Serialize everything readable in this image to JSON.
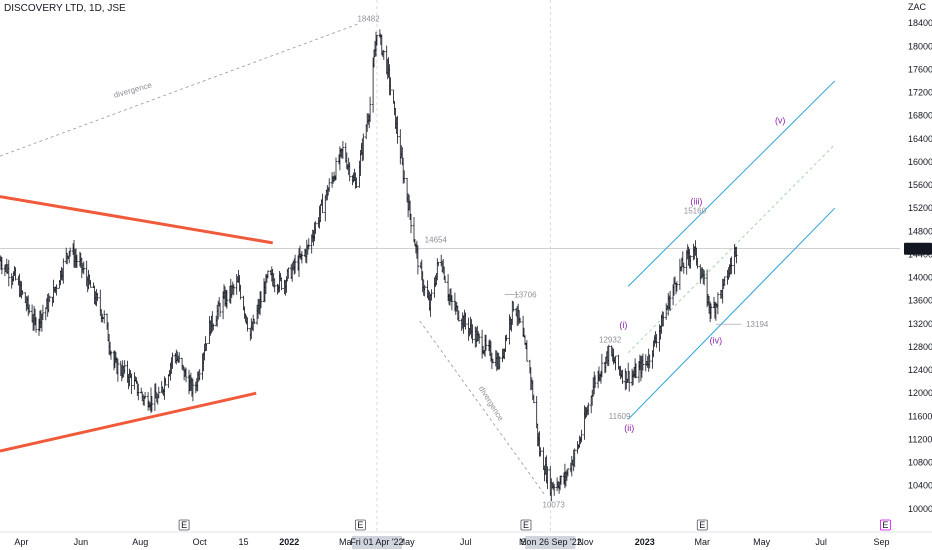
{
  "header": {
    "symbol": "DISCOVERY LTD, 1D, JSE"
  },
  "price_axis": {
    "currency": "ZAC"
  },
  "colors": {
    "bars": "#131722",
    "triangle": "#f05a3a",
    "channel": "#29a3d9",
    "wave_labels": "#8e24aa",
    "annotation": "#9598a1",
    "current_price_bg": "#131722"
  },
  "chart_data": {
    "type": "ohlc",
    "title": "DISCOVERY LTD, 1D, JSE",
    "ylim": [
      9600,
      18800
    ],
    "y_ticks": [
      10000,
      10400,
      10800,
      11200,
      11600,
      12000,
      12400,
      12800,
      13200,
      13600,
      14000,
      14400,
      14800,
      15200,
      15600,
      16000,
      16400,
      16800,
      17200,
      17600,
      18000,
      18400
    ],
    "y_tick_labels": [
      "10000",
      "10400",
      "10800",
      "11200",
      "11600",
      "12000",
      "12400",
      "12800",
      "13200",
      "13600",
      "14000",
      "14400",
      "14800",
      "15200",
      "15600",
      "16000",
      "16400",
      "16800",
      "17200",
      "17600",
      "18000",
      "18400"
    ],
    "x_range": [
      "2021-03-10",
      "2023-09-20"
    ],
    "x_ticks": [
      {
        "date": "2021-04-01",
        "label": "Apr"
      },
      {
        "date": "2021-06-01",
        "label": "Jun"
      },
      {
        "date": "2021-08-01",
        "label": "Aug"
      },
      {
        "date": "2021-10-01",
        "label": "Oct"
      },
      {
        "date": "2021-11-15",
        "label": "15"
      },
      {
        "date": "2022-01-01",
        "label": "2022"
      },
      {
        "date": "2022-03-01",
        "label": "Mar"
      },
      {
        "date": "2022-05-01",
        "label": "May"
      },
      {
        "date": "2022-07-01",
        "label": "Jul"
      },
      {
        "date": "2022-09-01",
        "label": "Se"
      },
      {
        "date": "2022-11-01",
        "label": "Nov"
      },
      {
        "date": "2023-01-01",
        "label": "2023"
      },
      {
        "date": "2023-03-01",
        "label": "Mar"
      },
      {
        "date": "2023-05-01",
        "label": "May"
      },
      {
        "date": "2023-07-01",
        "label": "Jul"
      },
      {
        "date": "2023-09-01",
        "label": "Sep"
      }
    ],
    "crosshair_x_labels": [
      {
        "date": "2022-04-01",
        "label": "Fri 01 Apr '22"
      },
      {
        "date": "2022-09-26",
        "label": "Mon 26 Sep '22"
      }
    ],
    "current_price": 14499,
    "current_price_label": "14499",
    "path": [
      {
        "date": "2021-03-10",
        "price": 14300
      },
      {
        "date": "2021-03-25",
        "price": 14000
      },
      {
        "date": "2021-04-15",
        "price": 13200
      },
      {
        "date": "2021-05-01",
        "price": 13600
      },
      {
        "date": "2021-05-20",
        "price": 14500
      },
      {
        "date": "2021-06-01",
        "price": 14200
      },
      {
        "date": "2021-06-25",
        "price": 13300
      },
      {
        "date": "2021-07-05",
        "price": 12500
      },
      {
        "date": "2021-07-20",
        "price": 12300
      },
      {
        "date": "2021-08-05",
        "price": 11900
      },
      {
        "date": "2021-08-20",
        "price": 11900
      },
      {
        "date": "2021-09-05",
        "price": 12700
      },
      {
        "date": "2021-09-25",
        "price": 12000
      },
      {
        "date": "2021-10-10",
        "price": 13100
      },
      {
        "date": "2021-10-25",
        "price": 13600
      },
      {
        "date": "2021-11-10",
        "price": 13900
      },
      {
        "date": "2021-11-22",
        "price": 13000
      },
      {
        "date": "2021-12-10",
        "price": 14000
      },
      {
        "date": "2021-12-25",
        "price": 13900
      },
      {
        "date": "2022-01-20",
        "price": 14500
      },
      {
        "date": "2022-02-05",
        "price": 15300
      },
      {
        "date": "2022-02-25",
        "price": 16200
      },
      {
        "date": "2022-03-10",
        "price": 15600
      },
      {
        "date": "2022-03-25",
        "price": 17000
      },
      {
        "date": "2022-04-01",
        "price": 18300
      },
      {
        "date": "2022-04-12",
        "price": 17600
      },
      {
        "date": "2022-04-28",
        "price": 15800
      },
      {
        "date": "2022-05-15",
        "price": 14100
      },
      {
        "date": "2022-05-25",
        "price": 13500
      },
      {
        "date": "2022-06-05",
        "price": 14400
      },
      {
        "date": "2022-06-15",
        "price": 13600
      },
      {
        "date": "2022-07-01",
        "price": 13200
      },
      {
        "date": "2022-07-20",
        "price": 12800
      },
      {
        "date": "2022-08-05",
        "price": 12500
      },
      {
        "date": "2022-08-20",
        "price": 13600
      },
      {
        "date": "2022-09-05",
        "price": 12400
      },
      {
        "date": "2022-09-15",
        "price": 11000
      },
      {
        "date": "2022-09-26",
        "price": 10400
      },
      {
        "date": "2022-10-10",
        "price": 10500
      },
      {
        "date": "2022-10-25",
        "price": 11100
      },
      {
        "date": "2022-11-10",
        "price": 12200
      },
      {
        "date": "2022-11-25",
        "price": 12700
      },
      {
        "date": "2022-12-10",
        "price": 12300
      },
      {
        "date": "2022-12-20",
        "price": 12300
      },
      {
        "date": "2023-01-05",
        "price": 12600
      },
      {
        "date": "2023-01-20",
        "price": 13300
      },
      {
        "date": "2023-02-05",
        "price": 14100
      },
      {
        "date": "2023-02-20",
        "price": 14500
      },
      {
        "date": "2023-03-01",
        "price": 14000
      },
      {
        "date": "2023-03-10",
        "price": 13400
      },
      {
        "date": "2023-03-22",
        "price": 13800
      },
      {
        "date": "2023-04-01",
        "price": 14300
      },
      {
        "date": "2023-04-05",
        "price": 14499
      }
    ],
    "annotations": [
      {
        "text": "18482",
        "date": "2022-03-12",
        "price": 18482
      },
      {
        "text": "14654",
        "date": "2022-05-20",
        "price": 14654
      },
      {
        "text": "13706",
        "date": "2022-08-20",
        "price": 13706
      },
      {
        "text": "12932",
        "date": "2022-11-15",
        "price": 12932
      },
      {
        "text": "11609",
        "date": "2022-11-25",
        "price": 11609
      },
      {
        "text": "10073",
        "date": "2022-09-18",
        "price": 10073
      },
      {
        "text": "15160",
        "date": "2023-02-10",
        "price": 15160
      },
      {
        "text": "13194",
        "date": "2023-04-15",
        "price": 13194
      }
    ],
    "wave_labels": [
      {
        "text": "(i)",
        "date": "2022-12-10",
        "price": 13130
      },
      {
        "text": "(ii)",
        "date": "2022-12-16",
        "price": 11350
      },
      {
        "text": "(iii)",
        "date": "2023-02-23",
        "price": 15260
      },
      {
        "text": "(iv)",
        "date": "2023-03-15",
        "price": 12860
      },
      {
        "text": "(v)",
        "date": "2023-05-20",
        "price": 16660
      }
    ],
    "divergence_labels": [
      {
        "text": "divergence",
        "date": "2021-07-25",
        "price": 17200,
        "angle": -16
      },
      {
        "text": "divergence",
        "date": "2022-07-25",
        "price": 11800,
        "angle": 58
      }
    ],
    "event_markers": [
      {
        "date": "2021-09-15",
        "text": "E"
      },
      {
        "date": "2022-03-15",
        "text": "E"
      },
      {
        "date": "2022-09-01",
        "text": "E"
      },
      {
        "date": "2023-03-01",
        "text": "E"
      },
      {
        "date": "2023-09-05",
        "text": "E"
      }
    ],
    "trendlines": {
      "triangle_upper": [
        {
          "date": "2021-03-10",
          "price": 15400
        },
        {
          "date": "2021-12-15",
          "price": 14600
        }
      ],
      "triangle_lower": [
        {
          "date": "2021-03-10",
          "price": 11000
        },
        {
          "date": "2021-11-28",
          "price": 12000
        }
      ],
      "divergence_top": [
        {
          "date": "2021-03-10",
          "price": 16100
        },
        {
          "date": "2022-03-15",
          "price": 18400
        }
      ],
      "divergence_bottom": [
        {
          "date": "2022-05-15",
          "price": 13250
        },
        {
          "date": "2022-09-20",
          "price": 10250
        }
      ],
      "channel_upper": [
        {
          "date": "2022-12-15",
          "price": 13850
        },
        {
          "date": "2023-07-15",
          "price": 17400
        }
      ],
      "channel_lower": [
        {
          "date": "2022-12-15",
          "price": 11550
        },
        {
          "date": "2023-07-15",
          "price": 15200
        }
      ],
      "channel_mid": [
        {
          "date": "2022-12-15",
          "price": 12700
        },
        {
          "date": "2023-07-15",
          "price": 16300
        }
      ],
      "h_13194": [
        {
          "date": "2023-03-15",
          "price": 13194
        },
        {
          "date": "2023-04-10",
          "price": 13194
        }
      ],
      "h_13706": [
        {
          "date": "2022-08-10",
          "price": 13706
        },
        {
          "date": "2022-08-25",
          "price": 13706
        }
      ]
    }
  }
}
